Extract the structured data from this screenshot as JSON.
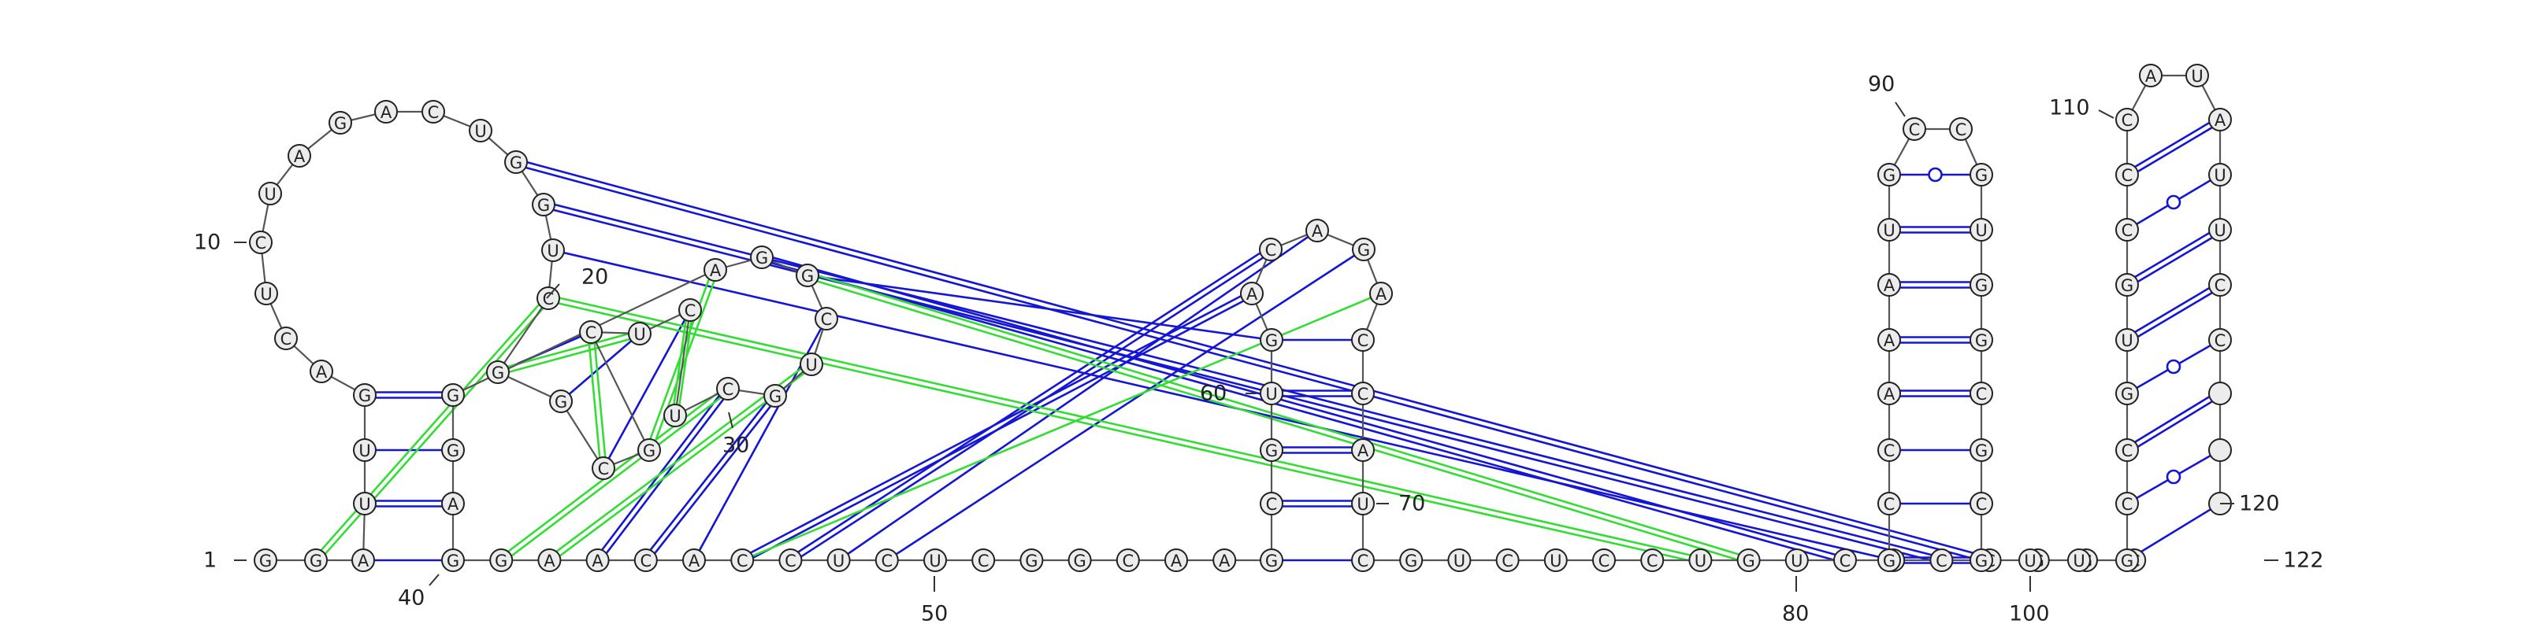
{
  "sequence": "GGAUUGACUCUAGACUGGUCGGCGCUCUCGUCGGAGGAGGAACACCUCUCGGCAAGCGUGACAGACCAUCGUCUCCUGUCGCCGGCGCCAAAUGCCGUGGCGCGUUGCCGUGCCCAUAUUCC",
  "numbering": {
    "labels": [
      "1",
      "10",
      "20",
      "30",
      "40",
      "50",
      "60",
      "70",
      "80",
      "90",
      "100",
      "110",
      "120",
      "122"
    ]
  },
  "colors": {
    "backbone": "#555555",
    "canonical_pair": "#1515d6",
    "pseudoknot_pair": "#33dd33",
    "nucleotide_fill": "#ececec"
  }
}
